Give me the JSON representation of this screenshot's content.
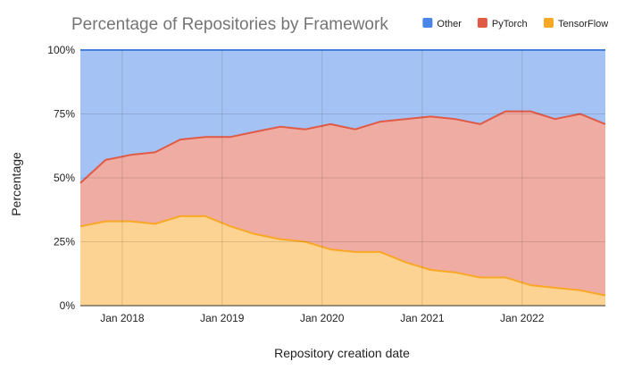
{
  "chart_data": {
    "type": "area",
    "stacked": "percent",
    "title": "Percentage of Repositories by Framework",
    "xlabel": "Repository creation date",
    "ylabel": "Percentage",
    "ylim": [
      0,
      100
    ],
    "yticks": [
      "0%",
      "25%",
      "50%",
      "75%",
      "100%"
    ],
    "xticks": [
      {
        "date": "2018-01-01",
        "label": "Jan 2018"
      },
      {
        "date": "2019-01-01",
        "label": "Jan 2019"
      },
      {
        "date": "2020-01-01",
        "label": "Jan 2020"
      },
      {
        "date": "2021-01-01",
        "label": "Jan 2021"
      },
      {
        "date": "2022-01-01",
        "label": "Jan 2022"
      }
    ],
    "x": [
      "2017-08-01",
      "2017-11-01",
      "2018-02-01",
      "2018-05-01",
      "2018-08-01",
      "2018-11-01",
      "2019-02-01",
      "2019-05-01",
      "2019-08-01",
      "2019-11-01",
      "2020-02-01",
      "2020-05-01",
      "2020-08-01",
      "2020-11-01",
      "2021-02-01",
      "2021-05-01",
      "2021-08-01",
      "2021-11-01",
      "2022-02-01",
      "2022-05-01",
      "2022-08-01",
      "2022-11-01"
    ],
    "series": [
      {
        "name": "TensorFlow",
        "color": "#f9a825",
        "values": [
          31,
          33,
          33,
          32,
          35,
          35,
          31,
          28,
          26,
          25,
          22,
          21,
          21,
          17,
          14,
          13,
          11,
          11,
          8,
          7,
          6,
          4
        ]
      },
      {
        "name": "PyTorch",
        "color": "#e05a45",
        "values": [
          17,
          24,
          26,
          28,
          30,
          31,
          35,
          40,
          44,
          44,
          49,
          48,
          51,
          56,
          60,
          60,
          60,
          65,
          68,
          66,
          69,
          67
        ]
      },
      {
        "name": "Other",
        "color": "#4a86e8",
        "values": [
          52,
          43,
          41,
          40,
          35,
          34,
          34,
          32,
          30,
          31,
          29,
          31,
          28,
          27,
          26,
          27,
          29,
          24,
          24,
          27,
          25,
          29
        ]
      }
    ],
    "legend_position": "top-right",
    "grid": true
  }
}
